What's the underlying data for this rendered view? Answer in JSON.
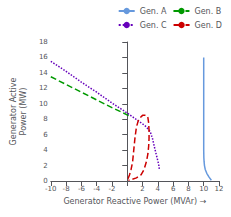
{
  "chart_data": {
    "type": "line",
    "xlabel": "Generator Reactive Power (MVAr) →",
    "ylabel": "Generator Active\nPower (MW)",
    "xlim": [
      -10,
      12
    ],
    "ylim": [
      0,
      18
    ],
    "xticks": [
      -10,
      -8,
      -6,
      -4,
      -2,
      {
        "value": 0,
        "label": null
      },
      2,
      4,
      6,
      8,
      10,
      12
    ],
    "yticks": [
      0,
      2,
      4,
      6,
      8,
      10,
      12,
      14,
      16,
      18
    ],
    "grid": false,
    "legend": "upper right",
    "series": [
      {
        "name": "Gen. A",
        "color": "#6699dd",
        "line_style": "solid",
        "x": [
          10.0,
          10.0,
          10.0,
          10.0,
          10.0,
          10.0,
          10.0,
          10.02,
          10.05,
          10.1,
          10.2,
          10.4,
          10.7,
          11.0
        ],
        "values": [
          16.0,
          14.0,
          12.0,
          10.0,
          8.0,
          6.0,
          4.0,
          3.0,
          2.5,
          2.0,
          1.5,
          1.0,
          0.5,
          0.1
        ]
      },
      {
        "name": "Gen. B",
        "color": "#009900",
        "line_style": "dashed",
        "x": [
          -10.0,
          -8.0,
          -6.0,
          -4.0,
          -2.0,
          -0.5,
          0.3
        ],
        "values": [
          13.5,
          12.5,
          11.5,
          10.5,
          9.5,
          8.8,
          8.4
        ]
      },
      {
        "name": "Gen. C",
        "color": "#6600bb",
        "line_style": "dotted",
        "x": [
          -10.0,
          -8.0,
          -6.0,
          -4.0,
          -2.0,
          0.0,
          1.0,
          2.0,
          2.5,
          3.0,
          3.3,
          3.6,
          3.9,
          4.1,
          4.2
        ],
        "values": [
          15.5,
          14.2,
          12.8,
          11.5,
          10.1,
          8.8,
          8.1,
          7.4,
          7.0,
          6.4,
          5.5,
          4.2,
          3.0,
          2.2,
          1.5
        ]
      },
      {
        "name": "Gen. D",
        "color": "#cc0000",
        "line_style": "dashed",
        "x": [
          0.1,
          0.3,
          0.5,
          0.7,
          0.8,
          0.9,
          1.0,
          1.2,
          1.5,
          2.0,
          2.3,
          2.5,
          2.7,
          2.8,
          2.85,
          2.85,
          2.8,
          2.7,
          2.5,
          2.2,
          1.8,
          1.2,
          0.6,
          0.15
        ],
        "values": [
          0.3,
          0.8,
          1.5,
          2.5,
          3.5,
          4.5,
          5.5,
          7.0,
          8.0,
          8.5,
          8.5,
          8.5,
          8.2,
          7.5,
          6.5,
          5.5,
          4.5,
          3.5,
          2.5,
          1.5,
          0.8,
          0.4,
          0.2,
          0.1
        ]
      }
    ]
  }
}
